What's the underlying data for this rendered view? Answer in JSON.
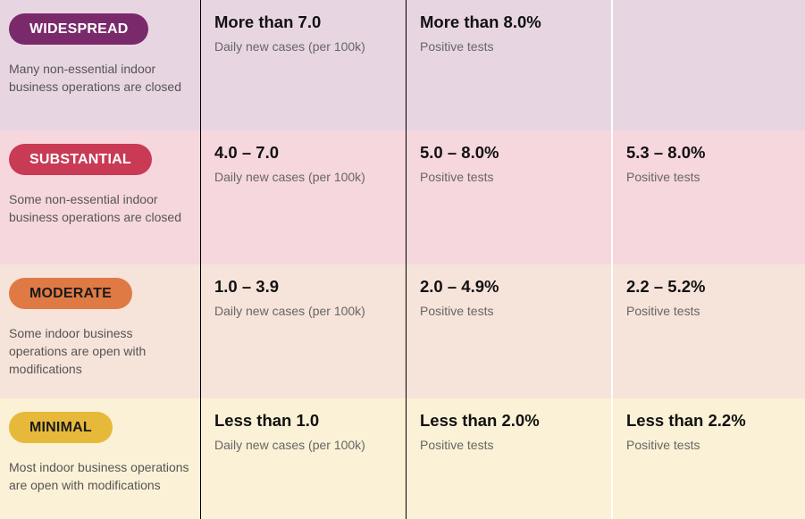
{
  "tiers": [
    {
      "key": "widespread",
      "label": "WIDESPREAD",
      "description": "Many non-essential indoor business operations are closed",
      "row_bg": "#e8d5e2",
      "pill_bg": "#7a2a6b",
      "pill_text": "#ffffff",
      "cases": "More than 7.0",
      "cases_unit": "Daily new cases (per 100k)",
      "positivity": "More than 8.0%",
      "positivity_unit": "Positive tests",
      "equity": "",
      "equity_unit": ""
    },
    {
      "key": "substantial",
      "label": "SUBSTANTIAL",
      "description": "Some non-essential indoor business operations are closed",
      "row_bg": "#f6d7dd",
      "pill_bg": "#c93a55",
      "pill_text": "#ffffff",
      "cases": "4.0 – 7.0",
      "cases_unit": "Daily new cases (per 100k)",
      "positivity": "5.0 – 8.0%",
      "positivity_unit": "Positive tests",
      "equity": "5.3 – 8.0%",
      "equity_unit": "Positive tests"
    },
    {
      "key": "moderate",
      "label": "MODERATE",
      "description": "Some indoor business operations are open with modifications",
      "row_bg": "#f6e3da",
      "pill_bg": "#e07a45",
      "pill_text": "#1a1a1a",
      "cases": "1.0 – 3.9",
      "cases_unit": "Daily new cases (per 100k)",
      "positivity": "2.0 – 4.9%",
      "positivity_unit": "Positive tests",
      "equity": "2.2 – 5.2%",
      "equity_unit": "Positive tests"
    },
    {
      "key": "minimal",
      "label": "MINIMAL",
      "description": "Most indoor business operations are open with modifications",
      "row_bg": "#fbf1d6",
      "pill_bg": "#e7b93b",
      "pill_text": "#1a1a1a",
      "cases": "Less than 1.0",
      "cases_unit": "Daily new cases (per 100k)",
      "positivity": "Less than 2.0%",
      "positivity_unit": "Positive tests",
      "equity": "Less than 2.2%",
      "equity_unit": "Positive tests"
    }
  ]
}
